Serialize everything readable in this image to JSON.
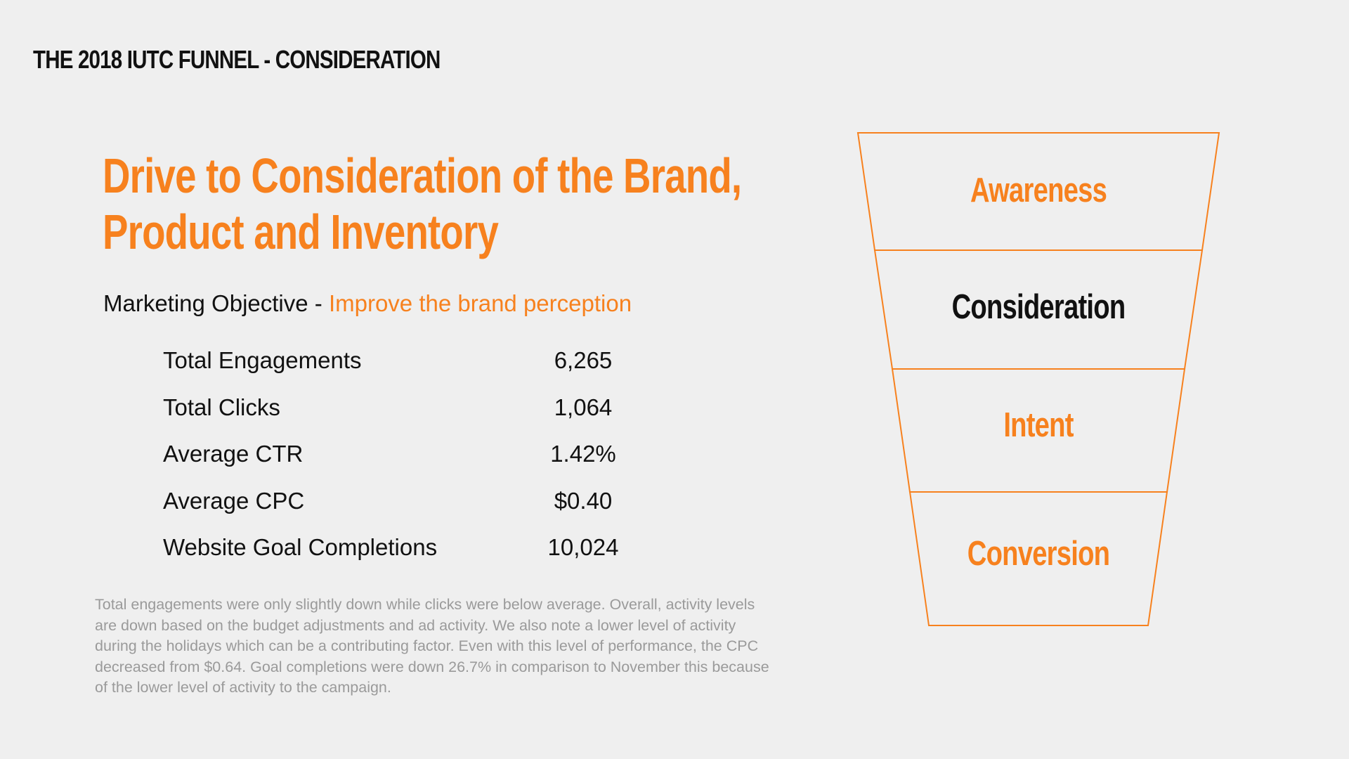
{
  "slide": {
    "title": "THE 2018 IUTC FUNNEL - CONSIDERATION"
  },
  "headline": {
    "line1": "Drive to Consideration of the Brand,",
    "line2": "Product and Inventory"
  },
  "objective": {
    "label": "Marketing Objective - ",
    "value": "Improve the brand perception"
  },
  "metrics": [
    {
      "label": "Total Engagements",
      "value": "6,265"
    },
    {
      "label": "Total Clicks",
      "value": "1,064"
    },
    {
      "label": "Average CTR",
      "value": "1.42%"
    },
    {
      "label": "Average CPC",
      "value": "$0.40"
    },
    {
      "label": "Website Goal Completions",
      "value": "10,024"
    }
  ],
  "note": "Total engagements were only slightly down while clicks were below average. Overall, activity levels are down based on the budget adjustments and ad activity. We also note a lower level of activity during the holidays which can be a contributing factor. Even with this level of performance, the CPC decreased from $0.64. Goal completions were down 26.7% in comparison to November this because of the lower level of activity to the campaign.",
  "funnel": {
    "stages": [
      {
        "label": "Awareness",
        "active": false
      },
      {
        "label": "Consideration",
        "active": true
      },
      {
        "label": "Intent",
        "active": false
      },
      {
        "label": "Conversion",
        "active": false
      }
    ]
  },
  "colors": {
    "accent": "#f7811e",
    "text": "#111111",
    "muted": "#9a9a9a",
    "background": "#efefef"
  }
}
